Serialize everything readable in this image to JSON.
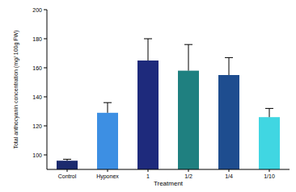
{
  "chart_data": {
    "type": "bar",
    "x_label": "Treatment",
    "y_label": "Total anthocyanin concentration (mg/ 100g FW)",
    "categories": [
      "Control",
      "Hyponex",
      "1",
      "1/2",
      "1/4",
      "1/10"
    ],
    "values": [
      96,
      129,
      165,
      158,
      155,
      126
    ],
    "errors": [
      1,
      7,
      15,
      18,
      12,
      6
    ],
    "colors": [
      "#1b2a6e",
      "#3d8fe3",
      "#1e2a7c",
      "#1f8080",
      "#1e4d8f",
      "#40d6e2"
    ],
    "ylim": [
      90,
      200
    ],
    "yticks": [
      100,
      120,
      140,
      160,
      180,
      200
    ],
    "grid": false
  }
}
